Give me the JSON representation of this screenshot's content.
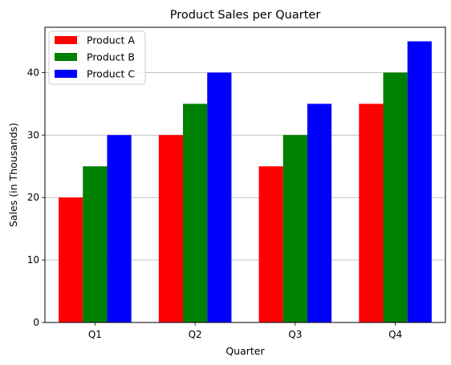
{
  "chart_data": {
    "type": "bar",
    "title": "Product Sales per Quarter",
    "xlabel": "Quarter",
    "ylabel": "Sales (in Thousands)",
    "categories": [
      "Q1",
      "Q2",
      "Q3",
      "Q4"
    ],
    "series": [
      {
        "name": "Product A",
        "color": "#ff0000",
        "values": [
          20,
          30,
          25,
          35
        ]
      },
      {
        "name": "Product B",
        "color": "#008000",
        "values": [
          25,
          35,
          30,
          40
        ]
      },
      {
        "name": "Product C",
        "color": "#0000ff",
        "values": [
          30,
          40,
          35,
          45
        ]
      }
    ],
    "ylim": [
      0,
      47.25
    ],
    "yticks": [
      0,
      10,
      20,
      30,
      40
    ],
    "grid": "y-major",
    "legend_position": "top-left"
  }
}
